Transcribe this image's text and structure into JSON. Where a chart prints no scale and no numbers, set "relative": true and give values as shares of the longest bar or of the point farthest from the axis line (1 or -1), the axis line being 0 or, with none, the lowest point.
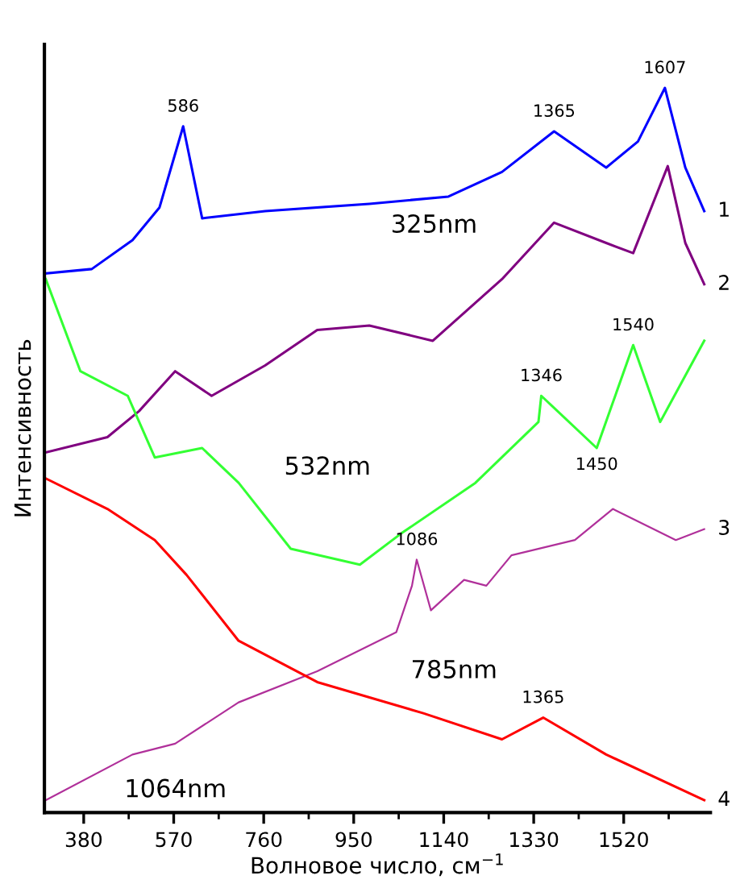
{
  "chart_data": {
    "type": "line",
    "relative": true,
    "xlabel": "Волновое число, см$^{−1}$",
    "ylabel": "Интенсивность",
    "xlim": [
      297,
      1703
    ],
    "xticks": [
      380,
      {
        "value": 475,
        "label": null
      },
      570,
      {
        "value": 665,
        "label": null
      },
      760,
      {
        "value": 855,
        "label": null
      },
      950,
      {
        "value": 1045,
        "label": null
      },
      1140,
      {
        "value": 1235,
        "label": null
      },
      1330,
      {
        "value": 1425,
        "label": null
      },
      1520,
      {
        "value": 1615,
        "label": null
      }
    ],
    "grid": false,
    "legend": false,
    "marker": "none",
    "line_style": "solid",
    "series": [
      {
        "name": "325nm",
        "color": "#0000ff",
        "x": [
          300,
          397,
          483,
          540,
          590,
          630,
          763,
          983,
          1150,
          1263,
          1373,
          1483,
          1550,
          1607,
          1650,
          1690
        ],
        "values": [
          0.744,
          0.75,
          0.79,
          0.835,
          0.947,
          0.82,
          0.83,
          0.84,
          0.85,
          0.884,
          0.94,
          0.89,
          0.926,
          1.0,
          0.89,
          0.83
        ]
      },
      {
        "color": "#800080",
        "x": [
          300,
          430,
          497,
          573,
          650,
          763,
          873,
          983,
          1117,
          1263,
          1373,
          1483,
          1540,
          1613,
          1650,
          1690
        ],
        "values": [
          0.497,
          0.518,
          0.554,
          0.609,
          0.575,
          0.617,
          0.666,
          0.672,
          0.651,
          0.736,
          0.814,
          0.786,
          0.772,
          0.892,
          0.786,
          0.729
        ]
      },
      {
        "name": "532nm",
        "color": "#33ff33",
        "x": [
          300,
          373,
          473,
          530,
          630,
          707,
          817,
          963,
          1050,
          1207,
          1340,
          1346,
          1463,
          1540,
          1597,
          1690
        ],
        "values": [
          0.736,
          0.609,
          0.575,
          0.49,
          0.503,
          0.455,
          0.364,
          0.342,
          0.385,
          0.455,
          0.539,
          0.575,
          0.503,
          0.645,
          0.539,
          0.651
        ]
      },
      {
        "name": "1064nm",
        "color": "#b0309a",
        "x": [
          300,
          483,
          573,
          707,
          873,
          1040,
          1073,
          1083,
          1113,
          1183,
          1230,
          1283,
          1417,
          1497,
          1630,
          1690
        ],
        "values": [
          0.017,
          0.08,
          0.095,
          0.152,
          0.195,
          0.249,
          0.313,
          0.349,
          0.279,
          0.321,
          0.313,
          0.355,
          0.376,
          0.419,
          0.376,
          0.391
        ]
      },
      {
        "name": "785nm",
        "color": "#ff0000",
        "x": [
          300,
          430,
          530,
          597,
          707,
          873,
          1097,
          1263,
          1350,
          1483,
          1690
        ],
        "values": [
          0.461,
          0.419,
          0.376,
          0.328,
          0.237,
          0.18,
          0.137,
          0.101,
          0.131,
          0.08,
          0.017
        ]
      }
    ],
    "annotations": [
      {
        "text": "586",
        "x": 590,
        "y": 0.947
      },
      {
        "text": "1365",
        "x": 1373,
        "y": 0.94
      },
      {
        "text": "1607",
        "x": 1607,
        "y": 1.0
      },
      {
        "text": "1346",
        "x": 1346,
        "y": 0.575
      },
      {
        "text": "1450",
        "x": 1463,
        "y": 0.503
      },
      {
        "text": "1540",
        "x": 1540,
        "y": 0.645
      },
      {
        "text": "1086",
        "x": 1083,
        "y": 0.349
      },
      {
        "text": "1365",
        "x": 1350,
        "y": 0.131
      },
      {
        "text": "1",
        "x": 1690,
        "y": 0.83
      },
      {
        "text": "2",
        "x": 1690,
        "y": 0.729
      },
      {
        "text": "3",
        "x": 1690,
        "y": 0.391
      },
      {
        "text": "4",
        "x": 1690,
        "y": 0.017
      }
    ]
  }
}
